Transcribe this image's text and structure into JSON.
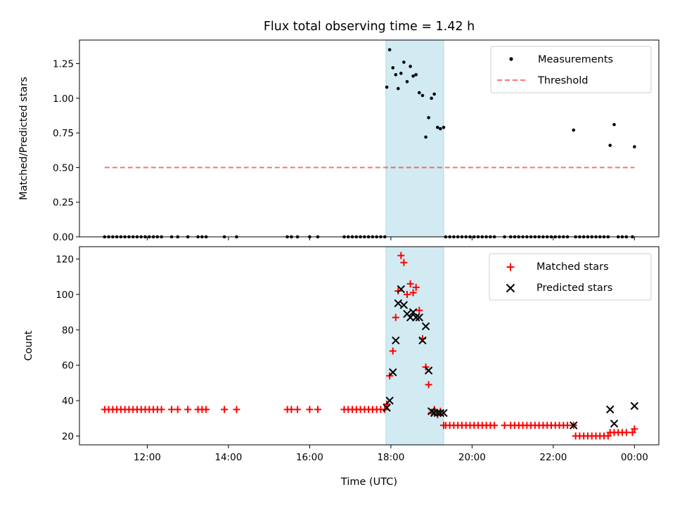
{
  "title": "Flux total observing time = 1.42 h",
  "chart_data": [
    {
      "type": "scatter",
      "ylabel": "Matched/Predicted stars",
      "xlim": [
        10.33,
        24.6
      ],
      "ylim": [
        0,
        1.42
      ],
      "yticks": [
        "0.00",
        "0.25",
        "0.50",
        "0.75",
        "1.00",
        "1.25"
      ],
      "highlight_span": [
        17.88,
        19.3
      ],
      "highlight_color": "#add8e6",
      "threshold": {
        "name": "Threshold",
        "value": 0.5,
        "x_range": [
          10.95,
          24.0
        ],
        "color": "#ff0000",
        "style": "dashed"
      },
      "series": [
        {
          "name": "Measurements",
          "color": "#000000",
          "marker": "dot",
          "x": [
            17.9,
            17.97,
            18.05,
            18.12,
            18.18,
            18.25,
            18.32,
            18.4,
            18.48,
            18.55,
            18.62,
            18.7,
            18.78,
            18.86,
            18.93,
            19.0,
            19.07,
            19.15,
            19.22,
            19.3,
            22.5,
            23.4,
            23.5,
            24.0
          ],
          "y": [
            1.08,
            1.35,
            1.22,
            1.17,
            1.07,
            1.18,
            1.26,
            1.12,
            1.23,
            1.16,
            1.17,
            1.04,
            1.02,
            0.72,
            0.86,
            1.0,
            1.03,
            0.79,
            0.78,
            0.79,
            0.77,
            0.66,
            0.81,
            0.65
          ],
          "x_zero": [
            10.95,
            11.05,
            11.15,
            11.25,
            11.35,
            11.45,
            11.55,
            11.65,
            11.75,
            11.85,
            11.95,
            12.05,
            12.15,
            12.25,
            12.35,
            12.6,
            12.75,
            13.0,
            13.25,
            13.35,
            13.45,
            13.9,
            14.2,
            15.45,
            15.55,
            15.7,
            16.0,
            16.2,
            16.85,
            16.95,
            17.05,
            17.15,
            17.25,
            17.35,
            17.45,
            17.55,
            17.65,
            17.75,
            17.85,
            19.35,
            19.45,
            19.55,
            19.65,
            19.75,
            19.85,
            19.95,
            20.05,
            20.15,
            20.25,
            20.35,
            20.45,
            20.55,
            20.8,
            20.95,
            21.05,
            21.15,
            21.25,
            21.35,
            21.45,
            21.55,
            21.65,
            21.75,
            21.85,
            21.95,
            22.05,
            22.15,
            22.25,
            22.35,
            22.55,
            22.65,
            22.75,
            22.85,
            22.95,
            23.05,
            23.15,
            23.25,
            23.35,
            23.6,
            23.7,
            23.8,
            23.95
          ]
        }
      ]
    },
    {
      "type": "scatter",
      "ylabel": "Count",
      "xlabel": "Time (UTC)",
      "xlim": [
        10.33,
        24.6
      ],
      "ylim": [
        15,
        127
      ],
      "yticks": [
        "20",
        "40",
        "60",
        "80",
        "100",
        "120"
      ],
      "xticks": [
        "12:00",
        "14:00",
        "16:00",
        "18:00",
        "20:00",
        "22:00",
        "00:00"
      ],
      "xtick_values": [
        12,
        14,
        16,
        18,
        20,
        22,
        24
      ],
      "highlight_span": [
        17.88,
        19.3
      ],
      "highlight_color": "#add8e6",
      "series": [
        {
          "name": "Matched stars",
          "color": "#ff0000",
          "marker": "plus",
          "x": [
            10.95,
            11.05,
            11.15,
            11.25,
            11.35,
            11.45,
            11.55,
            11.65,
            11.75,
            11.85,
            11.95,
            12.05,
            12.15,
            12.25,
            12.35,
            12.6,
            12.75,
            13.0,
            13.25,
            13.35,
            13.45,
            13.9,
            14.2,
            15.45,
            15.55,
            15.7,
            16.0,
            16.2,
            16.85,
            16.95,
            17.05,
            17.15,
            17.25,
            17.35,
            17.45,
            17.55,
            17.65,
            17.75,
            17.85,
            17.9,
            17.97,
            18.05,
            18.12,
            18.18,
            18.25,
            18.32,
            18.4,
            18.48,
            18.55,
            18.62,
            18.7,
            18.78,
            18.86,
            18.93,
            19.0,
            19.07,
            19.15,
            19.22,
            19.3,
            19.35,
            19.45,
            19.55,
            19.65,
            19.75,
            19.85,
            19.95,
            20.05,
            20.15,
            20.25,
            20.35,
            20.45,
            20.55,
            20.8,
            20.95,
            21.05,
            21.15,
            21.25,
            21.35,
            21.45,
            21.55,
            21.65,
            21.75,
            21.85,
            21.95,
            22.05,
            22.15,
            22.25,
            22.35,
            22.5,
            22.55,
            22.65,
            22.75,
            22.85,
            22.95,
            23.05,
            23.15,
            23.25,
            23.35,
            23.4,
            23.5,
            23.6,
            23.7,
            23.8,
            23.95,
            24.0
          ],
          "y": [
            35,
            35,
            35,
            35,
            35,
            35,
            35,
            35,
            35,
            35,
            35,
            35,
            35,
            35,
            35,
            35,
            35,
            35,
            35,
            35,
            35,
            35,
            35,
            35,
            35,
            35,
            35,
            35,
            35,
            35,
            35,
            35,
            35,
            35,
            35,
            35,
            35,
            35,
            35,
            38,
            54,
            68,
            87,
            102,
            122,
            118,
            100,
            106,
            101,
            104,
            91,
            75,
            59,
            49,
            33,
            35,
            32,
            34,
            26,
            26,
            26,
            26,
            26,
            26,
            26,
            26,
            26,
            26,
            26,
            26,
            26,
            26,
            26,
            26,
            26,
            26,
            26,
            26,
            26,
            26,
            26,
            26,
            26,
            26,
            26,
            26,
            26,
            26,
            26,
            20,
            20,
            20,
            20,
            20,
            20,
            20,
            20,
            20,
            22,
            22,
            22,
            22,
            22,
            22,
            24
          ]
        },
        {
          "name": "Predicted stars",
          "color": "#000000",
          "marker": "x",
          "x": [
            17.9,
            17.97,
            18.05,
            18.12,
            18.18,
            18.25,
            18.32,
            18.4,
            18.48,
            18.55,
            18.62,
            18.7,
            18.78,
            18.86,
            18.93,
            19.0,
            19.07,
            19.15,
            19.22,
            19.3,
            22.5,
            23.4,
            23.5,
            24.0
          ],
          "y": [
            36,
            40,
            56,
            74,
            95,
            103,
            94,
            89,
            87,
            90,
            87,
            87,
            74,
            82,
            57,
            34,
            33,
            33,
            33,
            33,
            26,
            35,
            27,
            37
          ]
        }
      ]
    }
  ]
}
